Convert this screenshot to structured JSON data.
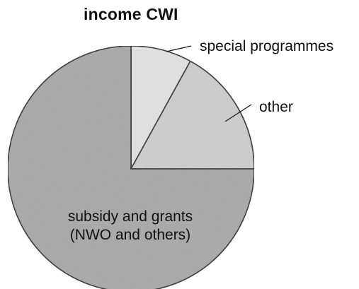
{
  "chart_data": {
    "type": "pie",
    "title": "income CWI",
    "slices": [
      {
        "label": "special programmes",
        "value": 8,
        "color": "#e2e2e2"
      },
      {
        "label": "other",
        "value": 17,
        "color": "#cdcdcd"
      },
      {
        "label": "subsidy and grants (NWO and others)",
        "value": 75,
        "color": "#a8a8a8"
      }
    ],
    "label_lines": {
      "special programmes": [
        "special programmes"
      ],
      "other": [
        "other"
      ],
      "subsidy and grants (NWO and others)": [
        "subsidy and grants",
        "(NWO and others)"
      ]
    },
    "start_angle": "12 o'clock",
    "direction": "clockwise",
    "legend": "none"
  }
}
